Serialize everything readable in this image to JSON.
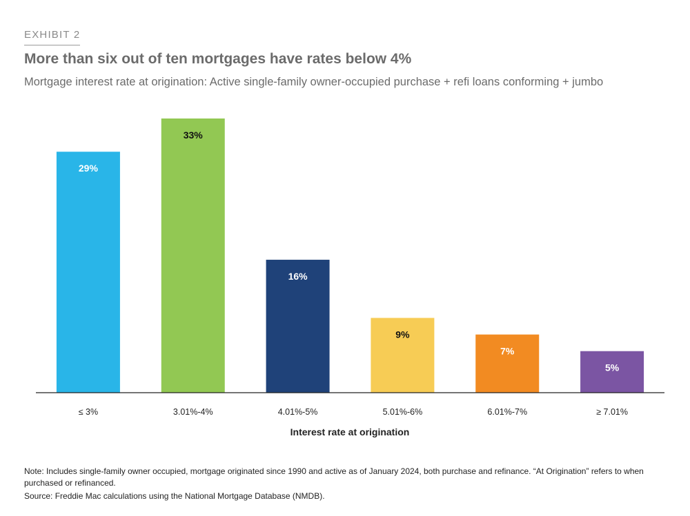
{
  "header": {
    "exhibit": "EXHIBIT 2",
    "title": "More than six out of ten mortgages have rates below 4%",
    "subtitle": "Mortgage interest rate at origination: Active single-family owner-occupied purchase + refi loans conforming + jumbo"
  },
  "chart_data": {
    "type": "bar",
    "categories": [
      "≤ 3%",
      "3.01%-4%",
      "4.01%-5%",
      "5.01%-6%",
      "6.01%-7%",
      "≥ 7.01%"
    ],
    "values": [
      29,
      33,
      16,
      9,
      7,
      5
    ],
    "data_labels": [
      "29%",
      "33%",
      "16%",
      "9%",
      "7%",
      "5%"
    ],
    "colors": [
      "#29b5e8",
      "#92c853",
      "#1f4279",
      "#f7cc55",
      "#f28b22",
      "#7b55a3"
    ],
    "label_colors": [
      "#ffffff",
      "#111111",
      "#ffffff",
      "#111111",
      "#ffffff",
      "#ffffff"
    ],
    "xlabel": "Interest rate at origination",
    "ylabel": "",
    "ylim": [
      0,
      33
    ],
    "grid": false,
    "legend": "none"
  },
  "footer": {
    "note": "Note: Includes single-family owner occupied, mortgage originated since 1990 and active as of January 2024, both purchase and refinance. “At Origination” refers to when purchased or refinanced.",
    "source": "Source: Freddie Mac calculations using the National Mortgage Database (NMDB)."
  }
}
